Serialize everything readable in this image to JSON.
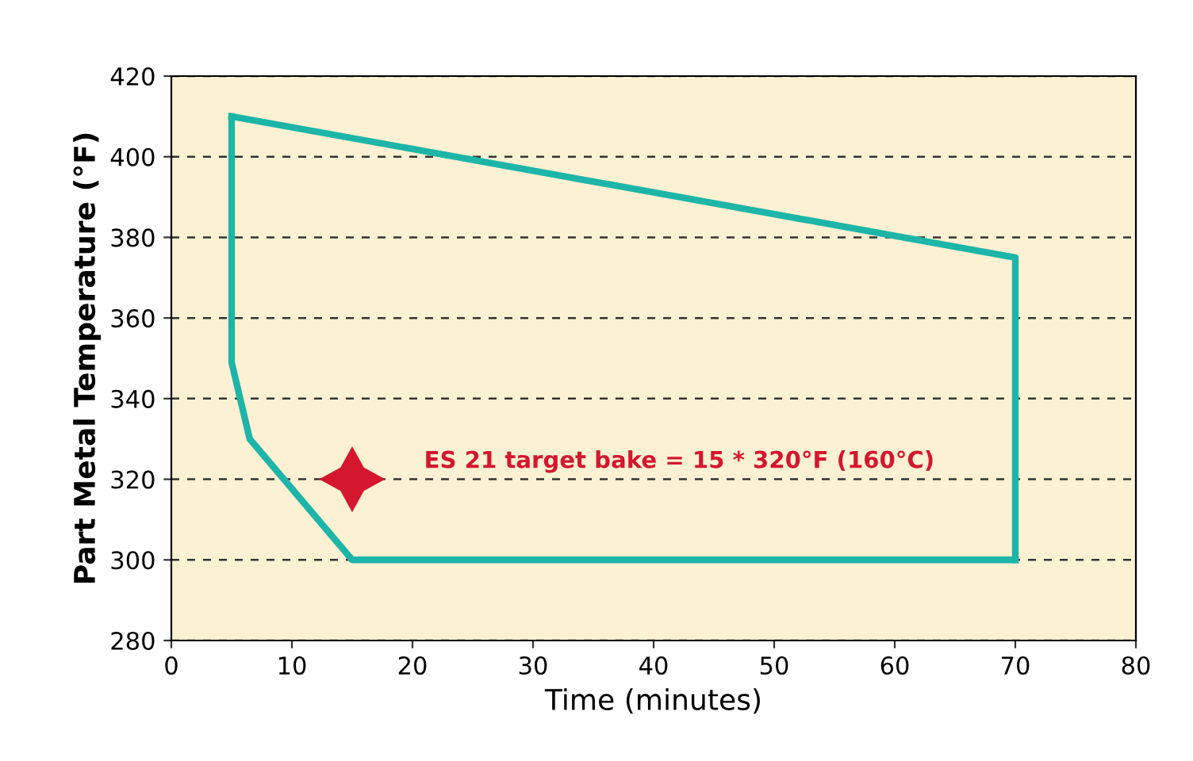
{
  "chart_data": {
    "type": "line",
    "xlabel": "Time (minutes)",
    "ylabel": "Part Metal Temperature (°F)",
    "xlim": [
      0,
      80
    ],
    "ylim": [
      280,
      420
    ],
    "xticks": [
      0,
      10,
      20,
      30,
      40,
      50,
      60,
      70,
      80
    ],
    "yticks": [
      280,
      300,
      320,
      340,
      360,
      380,
      400,
      420
    ],
    "grid": "y",
    "line_style": "solid",
    "legend": false,
    "series": [
      {
        "color": "#1db5a8",
        "marker": "none",
        "x": [
          5,
          70,
          70
        ],
        "values": [
          410,
          375,
          300
        ]
      },
      {
        "color": "#1db5a8",
        "marker": "none",
        "x": [
          5,
          5,
          6.5,
          15,
          70
        ],
        "values": [
          410,
          349,
          330,
          300,
          300
        ]
      },
      {
        "type": "scatter",
        "color": "#d4172e",
        "marker": "star",
        "x": [
          15
        ],
        "values": [
          320
        ]
      }
    ],
    "annotations": [
      "ES 21 target bake = 15 * 320°F (160°C)"
    ]
  }
}
